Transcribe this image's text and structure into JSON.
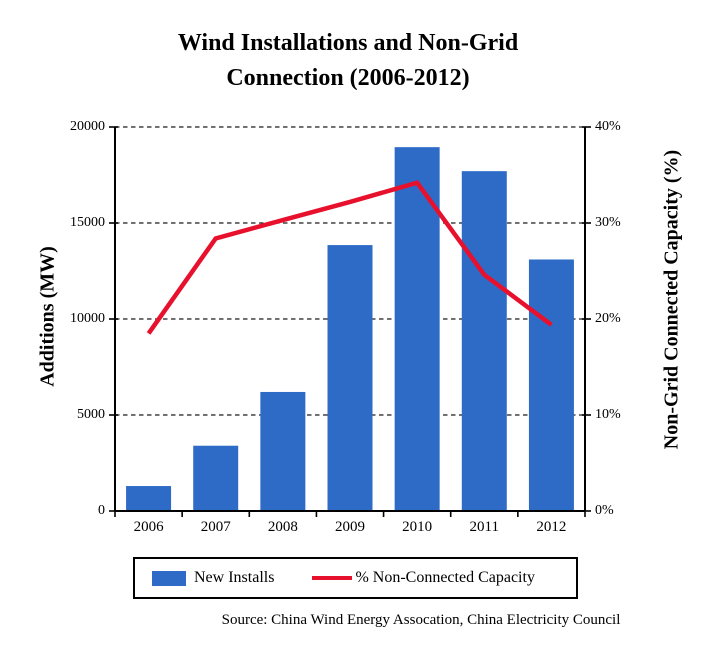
{
  "title": {
    "line1": "Wind Installations and Non-Grid",
    "line2": "Connection (2006-2012)"
  },
  "legend": {
    "bars": "New Installs",
    "line": "% Non-Connected Capacity"
  },
  "source": "Source: China Wind Energy Assocation, China Electricity Council",
  "colors": {
    "bar": "#2E6BC7",
    "line": "#E8112D",
    "axis": "#000000",
    "grid": "#1F1F1F",
    "background": "#FFFFFF"
  },
  "chart_data": {
    "type": "bar+line combo",
    "title": "Wind Installations and Non-Grid Connection (2006-2012)",
    "categories": [
      "2006",
      "2007",
      "2008",
      "2009",
      "2010",
      "2011",
      "2012"
    ],
    "series": [
      {
        "name": "New Installs",
        "type": "bar",
        "axis": "left",
        "values": [
          1300,
          3400,
          6200,
          13850,
          18950,
          17700,
          13100
        ]
      },
      {
        "name": "% Non-Connected Capacity",
        "type": "line",
        "axis": "right",
        "values": [
          18.5,
          28.4,
          30.3,
          32.2,
          34.2,
          24.6,
          19.4
        ]
      }
    ],
    "left_axis": {
      "label": "Additions (MW)",
      "min": 0,
      "max": 20000,
      "tick_values": [
        0,
        5000,
        10000,
        15000,
        20000
      ],
      "tick_labels": [
        "0",
        "5000",
        "10000",
        "15000",
        "20000"
      ]
    },
    "right_axis": {
      "label": "Non-Grid Connected Capacity (%)",
      "min": 0,
      "max": 40,
      "tick_values": [
        0,
        10,
        20,
        30,
        40
      ],
      "tick_labels": [
        "0%",
        "10%",
        "20%",
        "30%",
        "40%"
      ]
    },
    "grid": "horizontal dashed gridlines at left-axis ticks",
    "legend_position": "bottom boxed"
  }
}
